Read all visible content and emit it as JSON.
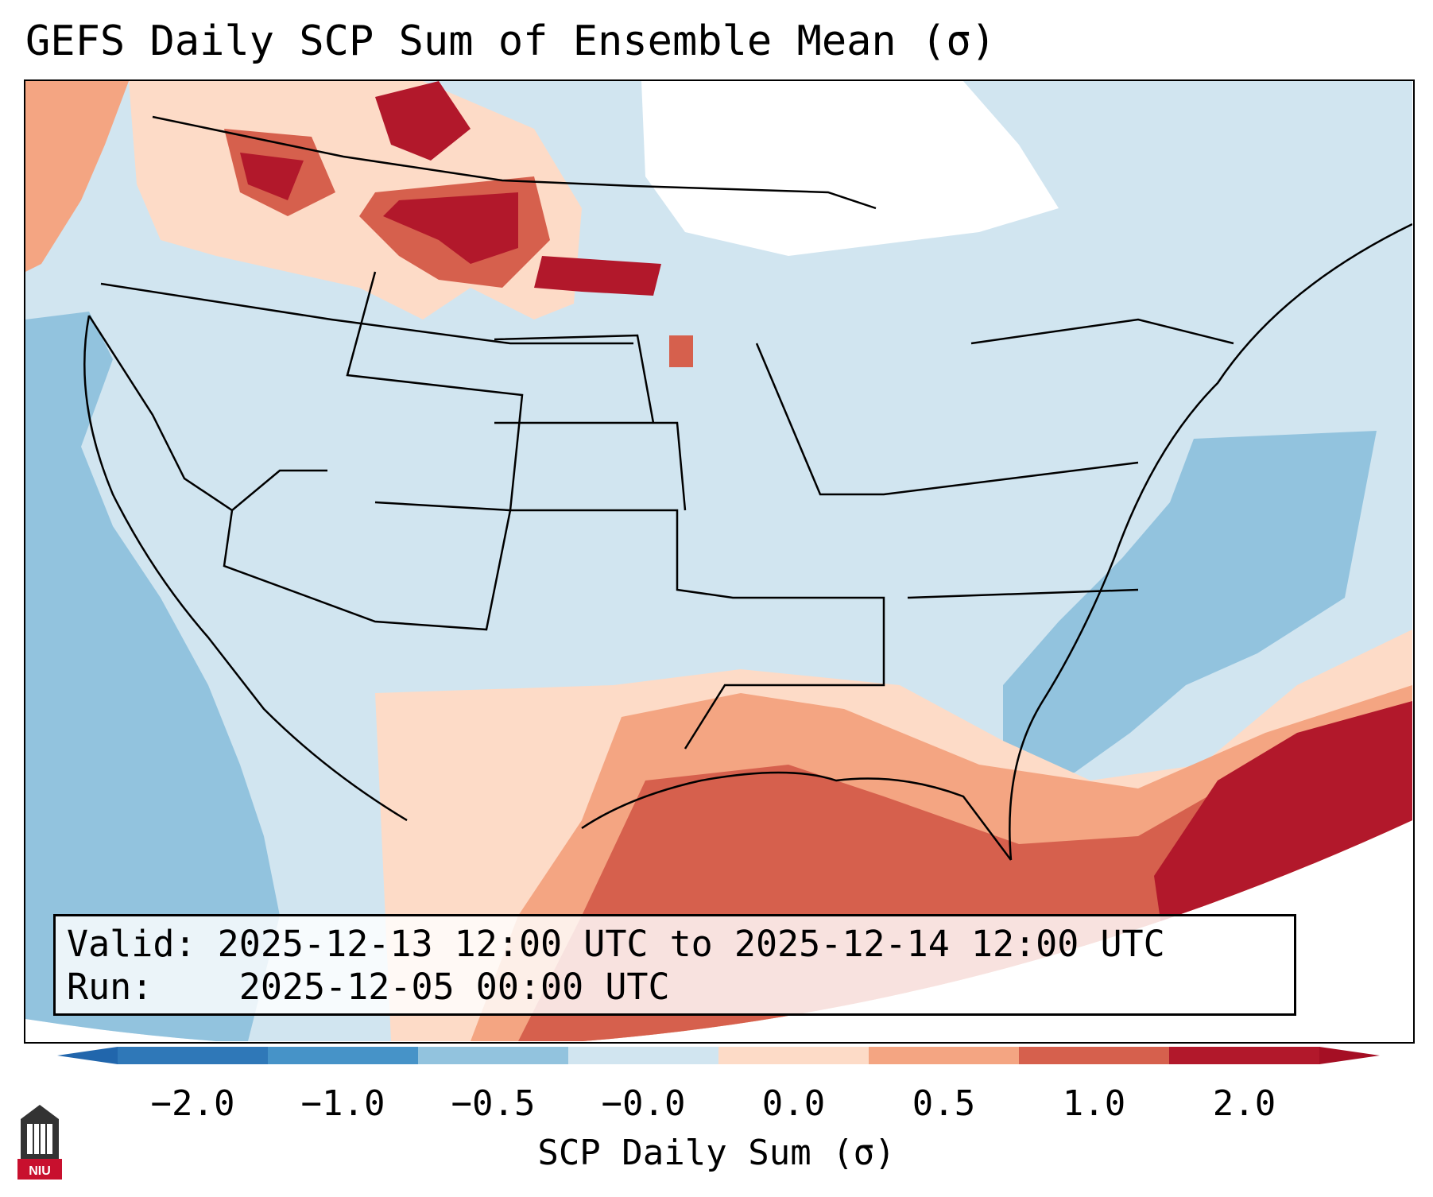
{
  "title": "GEFS Daily SCP Sum of Ensemble Mean (σ)",
  "info": {
    "valid_label": "Valid:",
    "valid_value": "2025-12-13 12:00 UTC to 2025-12-14 12:00 UTC",
    "run_label": "Run:",
    "run_value": "2025-12-05 00:00 UTC"
  },
  "colorbar": {
    "label": "SCP Daily Sum (σ)",
    "ticks": [
      "−2.0",
      "−1.0",
      "−0.5",
      "−0.0",
      "0.0",
      "0.5",
      "1.0",
      "2.0"
    ],
    "colors": [
      "#2f78b8",
      "#4693c8",
      "#92c3de",
      "#d1e5f0",
      "#fddbc7",
      "#f4a582",
      "#d6604d",
      "#b2182b"
    ],
    "under_color": "#2166ac",
    "over_color": "#a50f24"
  },
  "logo": {
    "text": "NIU",
    "icon": "university-tower-icon"
  }
}
